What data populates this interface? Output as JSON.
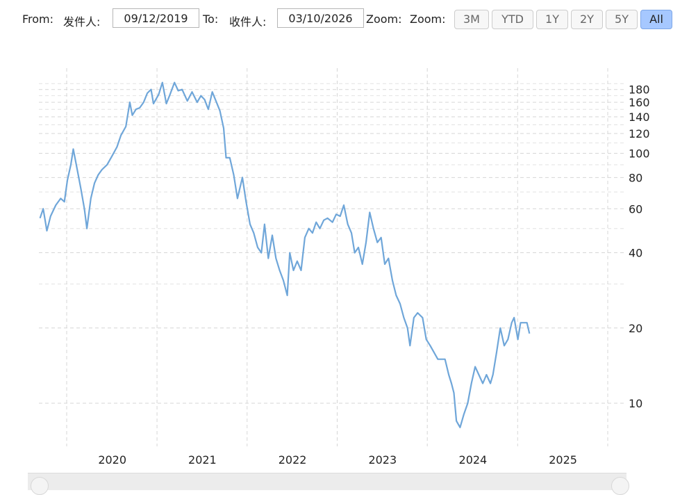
{
  "toolbar": {
    "from_label": "From:",
    "from_cn": "发件人:",
    "from_value": "09/12/2019",
    "to_label": "To:",
    "to_cn": "收件人:",
    "to_value": "03/10/2026",
    "zoom_label_1": "Zoom:",
    "zoom_label_2": "Zoom:",
    "zoom_buttons": [
      "3M",
      "YTD",
      "1Y",
      "2Y",
      "5Y",
      "All"
    ],
    "active_zoom": "All"
  },
  "chart_data": {
    "type": "line",
    "title": "",
    "xlabel": "",
    "ylabel": "",
    "y_scale": "log",
    "grid": true,
    "line_color": "#6fa6d9",
    "x_ticks": [
      "2020",
      "2021",
      "2022",
      "2023",
      "2024",
      "2025"
    ],
    "y_ticks": [
      10,
      20,
      40,
      60,
      80,
      100,
      120,
      140,
      160,
      180
    ],
    "series": [
      {
        "points": [
          [
            "2019-09-12",
            55
          ],
          [
            "2019-09-25",
            60
          ],
          [
            "2019-10-10",
            49
          ],
          [
            "2019-10-25",
            56
          ],
          [
            "2019-11-15",
            62
          ],
          [
            "2019-12-05",
            66
          ],
          [
            "2019-12-20",
            64
          ],
          [
            "2020-01-01",
            78
          ],
          [
            "2020-01-15",
            90
          ],
          [
            "2020-01-25",
            104
          ],
          [
            "2020-02-10",
            86
          ],
          [
            "2020-02-25",
            72
          ],
          [
            "2020-03-10",
            60
          ],
          [
            "2020-03-20",
            50
          ],
          [
            "2020-04-05",
            66
          ],
          [
            "2020-04-20",
            76
          ],
          [
            "2020-05-05",
            82
          ],
          [
            "2020-05-20",
            86
          ],
          [
            "2020-06-10",
            90
          ],
          [
            "2020-07-01",
            98
          ],
          [
            "2020-07-20",
            106
          ],
          [
            "2020-08-05",
            118
          ],
          [
            "2020-08-25",
            128
          ],
          [
            "2020-09-10",
            160
          ],
          [
            "2020-09-20",
            142
          ],
          [
            "2020-10-05",
            150
          ],
          [
            "2020-10-20",
            152
          ],
          [
            "2020-11-05",
            160
          ],
          [
            "2020-11-20",
            174
          ],
          [
            "2020-12-05",
            180
          ],
          [
            "2020-12-15",
            158
          ],
          [
            "2021-01-05",
            172
          ],
          [
            "2021-01-20",
            192
          ],
          [
            "2021-02-05",
            158
          ],
          [
            "2021-02-20",
            172
          ],
          [
            "2021-03-10",
            192
          ],
          [
            "2021-03-25",
            178
          ],
          [
            "2021-04-10",
            180
          ],
          [
            "2021-05-01",
            162
          ],
          [
            "2021-05-20",
            176
          ],
          [
            "2021-06-10",
            160
          ],
          [
            "2021-06-25",
            170
          ],
          [
            "2021-07-10",
            164
          ],
          [
            "2021-07-25",
            150
          ],
          [
            "2021-08-10",
            176
          ],
          [
            "2021-08-25",
            162
          ],
          [
            "2021-09-10",
            148
          ],
          [
            "2021-09-25",
            126
          ],
          [
            "2021-10-05",
            96
          ],
          [
            "2021-10-20",
            96
          ],
          [
            "2021-11-05",
            82
          ],
          [
            "2021-11-20",
            66
          ],
          [
            "2021-12-10",
            80
          ],
          [
            "2021-12-25",
            64
          ],
          [
            "2022-01-10",
            52
          ],
          [
            "2022-01-25",
            48
          ],
          [
            "2022-02-10",
            42
          ],
          [
            "2022-02-25",
            40
          ],
          [
            "2022-03-10",
            52
          ],
          [
            "2022-03-25",
            38
          ],
          [
            "2022-04-10",
            47
          ],
          [
            "2022-04-25",
            38
          ],
          [
            "2022-05-10",
            34
          ],
          [
            "2022-05-25",
            31
          ],
          [
            "2022-06-10",
            27
          ],
          [
            "2022-06-20",
            40
          ],
          [
            "2022-07-05",
            34
          ],
          [
            "2022-07-20",
            37
          ],
          [
            "2022-08-05",
            34
          ],
          [
            "2022-08-20",
            46
          ],
          [
            "2022-09-05",
            50
          ],
          [
            "2022-09-20",
            48
          ],
          [
            "2022-10-05",
            53
          ],
          [
            "2022-10-20",
            50
          ],
          [
            "2022-11-05",
            54
          ],
          [
            "2022-11-20",
            55
          ],
          [
            "2022-12-10",
            53
          ],
          [
            "2022-12-25",
            57
          ],
          [
            "2023-01-10",
            56
          ],
          [
            "2023-01-25",
            62
          ],
          [
            "2023-02-10",
            52
          ],
          [
            "2023-02-25",
            48
          ],
          [
            "2023-03-10",
            40
          ],
          [
            "2023-03-25",
            42
          ],
          [
            "2023-04-10",
            36
          ],
          [
            "2023-04-25",
            44
          ],
          [
            "2023-05-10",
            58
          ],
          [
            "2023-05-25",
            50
          ],
          [
            "2023-06-10",
            44
          ],
          [
            "2023-06-25",
            46
          ],
          [
            "2023-07-10",
            36
          ],
          [
            "2023-07-25",
            38
          ],
          [
            "2023-08-10",
            31
          ],
          [
            "2023-08-25",
            27
          ],
          [
            "2023-09-10",
            25
          ],
          [
            "2023-09-25",
            22
          ],
          [
            "2023-10-10",
            20
          ],
          [
            "2023-10-20",
            17
          ],
          [
            "2023-11-05",
            22
          ],
          [
            "2023-11-20",
            23
          ],
          [
            "2023-12-10",
            22
          ],
          [
            "2023-12-25",
            18
          ],
          [
            "2024-01-10",
            17
          ],
          [
            "2024-01-25",
            16
          ],
          [
            "2024-02-10",
            15
          ],
          [
            "2024-02-25",
            15
          ],
          [
            "2024-03-10",
            15
          ],
          [
            "2024-03-25",
            13
          ],
          [
            "2024-04-05",
            12
          ],
          [
            "2024-04-15",
            11
          ],
          [
            "2024-04-25",
            8.5
          ],
          [
            "2024-05-10",
            8
          ],
          [
            "2024-05-25",
            9
          ],
          [
            "2024-06-10",
            10
          ],
          [
            "2024-06-25",
            12
          ],
          [
            "2024-07-10",
            14
          ],
          [
            "2024-07-25",
            13
          ],
          [
            "2024-08-10",
            12
          ],
          [
            "2024-08-25",
            13
          ],
          [
            "2024-09-10",
            12
          ],
          [
            "2024-09-20",
            13
          ],
          [
            "2024-10-05",
            16
          ],
          [
            "2024-10-20",
            20
          ],
          [
            "2024-11-05",
            17
          ],
          [
            "2024-11-20",
            18
          ],
          [
            "2024-12-05",
            21
          ],
          [
            "2024-12-15",
            22
          ],
          [
            "2024-12-30",
            18
          ],
          [
            "2025-01-10",
            21
          ],
          [
            "2025-01-25",
            21
          ],
          [
            "2025-02-05",
            21
          ],
          [
            "2025-02-15",
            19
          ]
        ]
      }
    ]
  }
}
